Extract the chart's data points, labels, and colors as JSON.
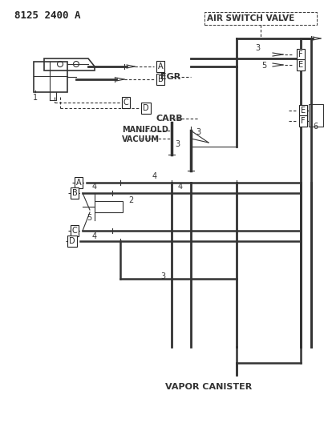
{
  "title": "8125 2400 A",
  "bg_color": "#ffffff",
  "line_color": "#333333",
  "label_color": "#222222",
  "labels": {
    "air_switch_valve": "AIR SWITCH VALVE",
    "egr": "EGR",
    "carb": "CARB",
    "manifold_vacuum": "MANIFOLD\nVACUUM",
    "vapor_canister": "VAPOR CANISTER"
  },
  "boxed_labels": [
    "A",
    "B",
    "C",
    "D",
    "E",
    "F"
  ],
  "numbers": [
    "1",
    "2",
    "3",
    "4",
    "5",
    "6"
  ]
}
